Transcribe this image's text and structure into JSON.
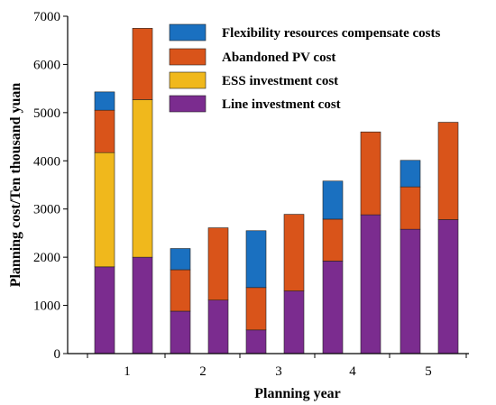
{
  "chart_data": {
    "type": "bar",
    "stacked": true,
    "xlabel": "Planning year",
    "ylabel": "Planning cost/Ten thousand yuan",
    "ylim": [
      0,
      7000
    ],
    "yticks": [
      0,
      1000,
      2000,
      3000,
      4000,
      5000,
      6000,
      7000
    ],
    "xtick_labels": [
      "1",
      "2",
      "3",
      "4",
      "5"
    ],
    "legend_position": "top-right",
    "bars": 10,
    "series": [
      {
        "name": "Line investment cost",
        "color": "#7b2c8f",
        "values": [
          1800,
          2000,
          880,
          1110,
          490,
          1300,
          1920,
          2880,
          2580,
          2780
        ]
      },
      {
        "name": "ESS investment cost",
        "color": "#f0b81c",
        "values": [
          2370,
          3270,
          0,
          0,
          0,
          0,
          0,
          0,
          0,
          0
        ]
      },
      {
        "name": "Abandoned PV cost",
        "color": "#d9541a",
        "values": [
          880,
          1480,
          860,
          1500,
          880,
          1590,
          870,
          1720,
          880,
          2020
        ]
      },
      {
        "name": "Flexibility resources compensate costs",
        "color": "#1a70c0",
        "values": [
          380,
          0,
          440,
          0,
          1180,
          0,
          790,
          0,
          550,
          0
        ]
      }
    ],
    "legend_order": [
      3,
      2,
      1,
      0
    ]
  }
}
